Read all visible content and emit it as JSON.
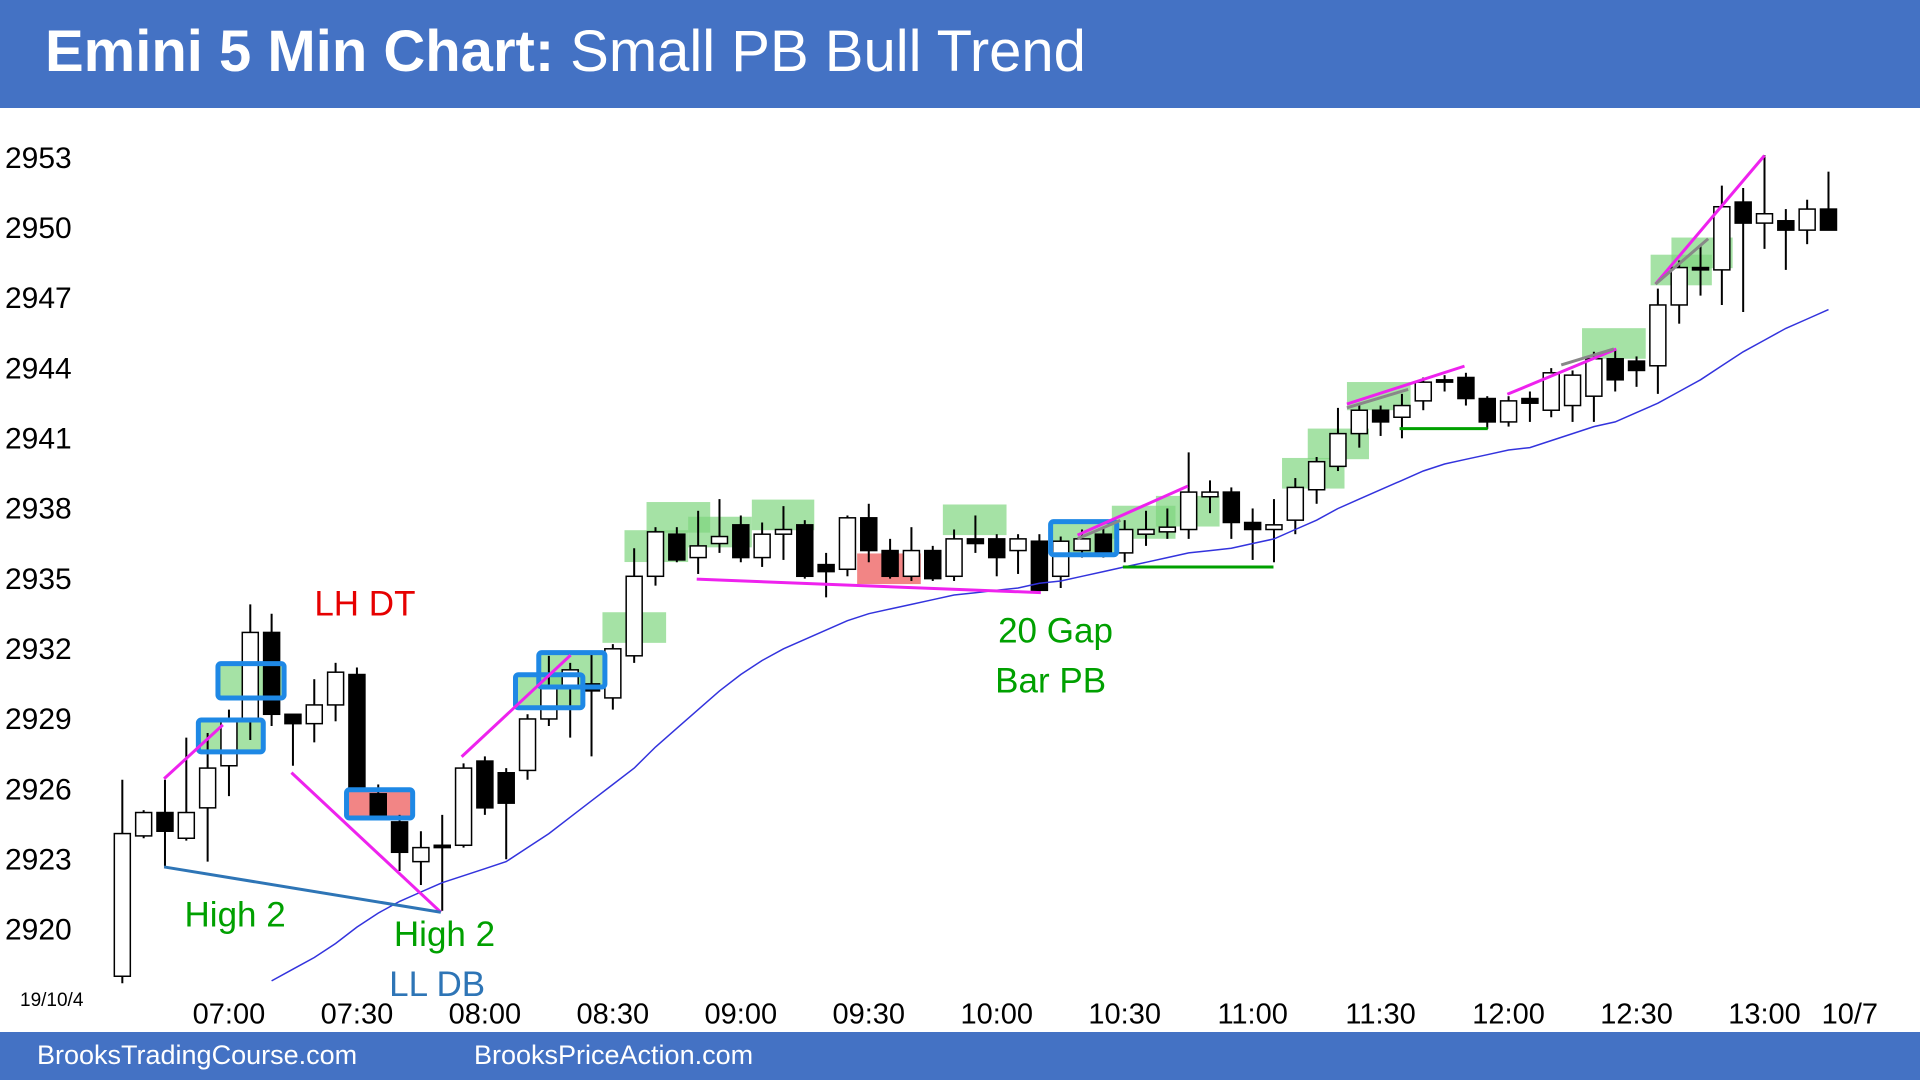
{
  "chart_data": {
    "type": "candlestick",
    "title": "Emini 5 Min Chart:",
    "subtitle": "Small PB Bull Trend",
    "date_label": "19/10/4",
    "footer": [
      "BrooksTradingCourse.com",
      "BrooksPriceAction.com"
    ],
    "up_color": "#ffffff",
    "down_color": "#000000",
    "categories": [
      null,
      null,
      null,
      null,
      null,
      "07:00",
      null,
      null,
      null,
      null,
      null,
      "07:30",
      null,
      null,
      null,
      null,
      null,
      "08:00",
      null,
      null,
      null,
      null,
      null,
      "08:30",
      null,
      null,
      null,
      null,
      null,
      "09:00",
      null,
      null,
      null,
      null,
      null,
      "09:30",
      null,
      null,
      null,
      null,
      null,
      "10:00",
      null,
      null,
      null,
      null,
      null,
      "10:30",
      null,
      null,
      null,
      null,
      null,
      "11:00",
      null,
      null,
      null,
      null,
      null,
      "11:30",
      null,
      null,
      null,
      null,
      null,
      "12:00",
      null,
      null,
      null,
      null,
      null,
      "12:30",
      null,
      null,
      null,
      null,
      null,
      "13:00",
      null,
      null,
      null,
      "10/7"
    ],
    "open": [
      2918.1,
      2924.1,
      2925.1,
      2924.0,
      2925.3,
      2927.1,
      2929.0,
      2932.8,
      2929.3,
      2928.9,
      2929.7,
      2931.0,
      2925.9,
      2924.7,
      2923.0,
      2923.7,
      2923.7,
      2927.3,
      2926.8,
      2926.9,
      2929.1,
      2930.4,
      2930.6,
      2930.0,
      2931.8,
      2935.2,
      2937.0,
      2936.0,
      2936.6,
      2937.4,
      2936.0,
      2937.0,
      2937.4,
      2935.7,
      2935.5,
      2937.7,
      2936.3,
      2935.2,
      2936.3,
      2935.2,
      2936.8,
      2936.8,
      2936.3,
      2936.7,
      2935.2,
      2936.3,
      2937.0,
      2936.2,
      2937.0,
      2937.1,
      2937.2,
      2938.6,
      2938.8,
      2937.5,
      2937.2,
      2937.6,
      2938.9,
      2939.9,
      2941.3,
      2942.3,
      2942.0,
      2942.7,
      2943.6,
      2943.7,
      2942.8,
      2941.8,
      2942.8,
      2942.3,
      2942.5,
      2942.9,
      2944.5,
      2944.4,
      2944.2,
      2946.8,
      2948.4,
      2948.3,
      2951.2,
      2950.3,
      2950.4,
      2950.0,
      2950.9,
      null
    ],
    "high": [
      2926.5,
      2925.2,
      2926.5,
      2928.3,
      2928.5,
      2929.5,
      2934.0,
      2933.6,
      2929.3,
      2930.8,
      2931.5,
      2931.3,
      2926.3,
      2925.0,
      2924.3,
      2925.0,
      2927.2,
      2927.5,
      2927.0,
      2929.3,
      2931.8,
      2931.5,
      2931.9,
      2932.3,
      2936.4,
      2937.3,
      2937.3,
      2938.0,
      2938.5,
      2937.8,
      2937.5,
      2938.2,
      2937.6,
      2936.2,
      2937.8,
      2938.3,
      2936.8,
      2937.3,
      2936.5,
      2937.2,
      2937.8,
      2937.0,
      2937.0,
      2937.0,
      2936.9,
      2937.2,
      2937.3,
      2937.6,
      2938.0,
      2938.1,
      2940.5,
      2939.3,
      2939.0,
      2938.1,
      2938.5,
      2939.4,
      2940.3,
      2942.4,
      2942.6,
      2942.5,
      2943.0,
      2943.7,
      2943.8,
      2943.9,
      2942.9,
      2942.9,
      2943.1,
      2944.1,
      2944.0,
      2944.8,
      2944.9,
      2944.6,
      2947.5,
      2948.7,
      2949.3,
      2951.9,
      2951.8,
      2953.2,
      2950.9,
      2951.3,
      2952.5,
      null
    ],
    "low": [
      2917.8,
      2924.0,
      2922.8,
      2923.9,
      2923.0,
      2925.8,
      2928.2,
      2928.8,
      2927.1,
      2928.1,
      2929.0,
      2926.0,
      2924.8,
      2922.6,
      2922.0,
      2920.9,
      2923.6,
      2925.0,
      2923.1,
      2926.5,
      2928.8,
      2928.3,
      2927.5,
      2929.5,
      2931.5,
      2934.8,
      2935.8,
      2935.3,
      2936.2,
      2935.8,
      2935.6,
      2935.9,
      2935.1,
      2934.3,
      2935.2,
      2935.8,
      2935.1,
      2935.0,
      2935.0,
      2935.0,
      2936.2,
      2935.2,
      2935.3,
      2934.5,
      2934.7,
      2936.0,
      2936.0,
      2935.8,
      2936.5,
      2936.8,
      2936.8,
      2937.9,
      2936.8,
      2935.9,
      2935.8,
      2937.0,
      2938.3,
      2939.7,
      2940.7,
      2941.2,
      2941.1,
      2942.3,
      2943.1,
      2942.5,
      2941.5,
      2941.6,
      2941.8,
      2942.0,
      2941.8,
      2941.8,
      2943.1,
      2943.3,
      2943.0,
      2946.0,
      2947.2,
      2946.8,
      2946.5,
      2949.2,
      2948.3,
      2949.4,
      2950.0,
      null
    ],
    "close": [
      2924.2,
      2925.1,
      2924.3,
      2925.1,
      2927.0,
      2929.0,
      2932.8,
      2929.3,
      2928.9,
      2929.7,
      2931.1,
      2926.2,
      2925.0,
      2923.4,
      2923.6,
      2923.6,
      2927.0,
      2925.3,
      2925.5,
      2929.1,
      2930.5,
      2931.2,
      2930.3,
      2932.1,
      2935.2,
      2937.1,
      2935.9,
      2936.5,
      2936.9,
      2936.0,
      2937.0,
      2937.2,
      2935.2,
      2935.4,
      2937.7,
      2936.3,
      2935.2,
      2936.3,
      2935.1,
      2936.8,
      2936.6,
      2936.0,
      2936.8,
      2934.6,
      2936.7,
      2936.8,
      2936.2,
      2937.2,
      2937.2,
      2937.3,
      2938.8,
      2938.8,
      2937.5,
      2937.2,
      2937.4,
      2939.0,
      2940.1,
      2941.3,
      2942.3,
      2941.8,
      2942.5,
      2943.5,
      2943.5,
      2942.8,
      2941.8,
      2942.7,
      2942.6,
      2943.9,
      2943.8,
      2944.5,
      2943.6,
      2944.0,
      2946.8,
      2948.4,
      2948.3,
      2951.0,
      2950.3,
      2950.7,
      2950.0,
      2950.9,
      2950.0,
      null
    ],
    "moving_average": {
      "color": "#3333dd",
      "values": [
        null,
        null,
        null,
        null,
        null,
        null,
        null,
        2917.9,
        2918.4,
        2918.9,
        2919.5,
        2920.2,
        2920.8,
        2921.3,
        2921.7,
        2922.1,
        2922.4,
        2922.7,
        2923.0,
        2923.6,
        2924.2,
        2924.9,
        2925.6,
        2926.3,
        2927.0,
        2927.9,
        2928.7,
        2929.5,
        2930.3,
        2931.0,
        2931.6,
        2932.1,
        2932.5,
        2932.9,
        2933.3,
        2933.6,
        2933.8,
        2934.0,
        2934.2,
        2934.4,
        2934.5,
        2934.6,
        2934.7,
        2934.9,
        2935.0,
        2935.2,
        2935.4,
        2935.6,
        2935.8,
        2936.0,
        2936.2,
        2936.3,
        2936.4,
        2936.6,
        2936.8,
        2937.2,
        2937.6,
        2938.1,
        2938.5,
        2938.9,
        2939.3,
        2939.7,
        2940.0,
        2940.2,
        2940.4,
        2940.6,
        2940.7,
        2941.0,
        2941.3,
        2941.6,
        2941.8,
        2942.2,
        2942.6,
        2943.1,
        2943.6,
        2944.2,
        2944.8,
        2945.3,
        2945.8,
        2946.2,
        2946.6,
        null
      ]
    },
    "ylim": [
      2917.2,
      2955.2
    ],
    "yticks": [
      2920,
      2923,
      2926,
      2929,
      2932,
      2935,
      2938,
      2941,
      2944,
      2947,
      2950,
      2953
    ],
    "grid": false,
    "annotations": [
      {
        "text": "LH DT",
        "color": "#e60000"
      },
      {
        "text": "High 2",
        "color": "#00a000"
      },
      {
        "text": "High 2",
        "color": "#00a000"
      },
      {
        "text": "LL DB",
        "color": "#2e75b6"
      },
      {
        "text": "20 Gap",
        "color": "#00a000"
      },
      {
        "text": "Bar PB",
        "color": "#00a000"
      }
    ]
  }
}
